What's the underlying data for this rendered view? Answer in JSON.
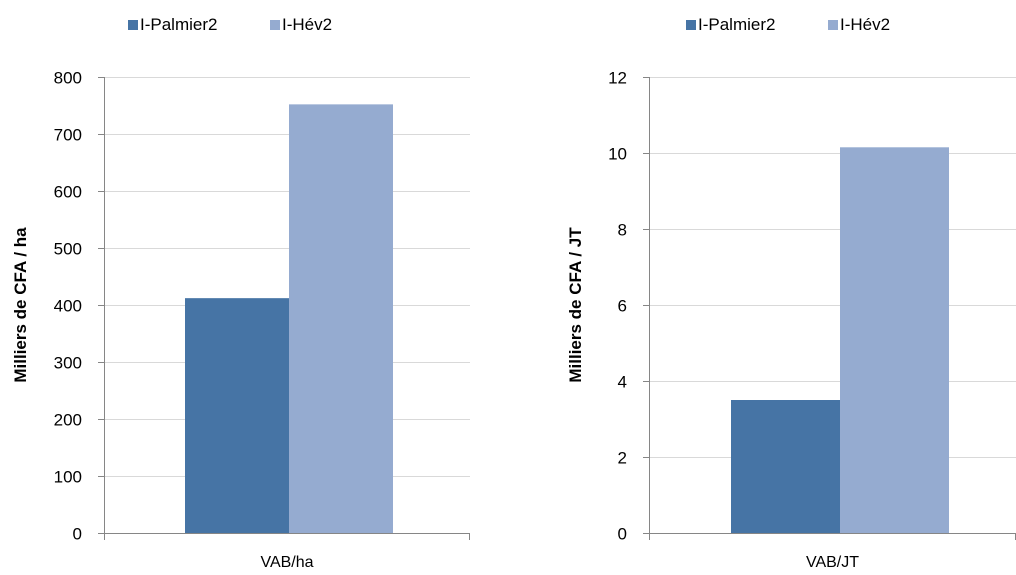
{
  "chart_data": [
    {
      "type": "bar",
      "categories": [
        "VAB/ha"
      ],
      "series": [
        {
          "name": "I-Palmier2",
          "values": [
            412
          ]
        },
        {
          "name": "I-Hév2",
          "values": [
            752
          ]
        }
      ],
      "title": "",
      "xlabel": "",
      "ylabel": "Milliers de CFA / ha",
      "ylim": [
        0,
        800
      ],
      "yticks": [
        0,
        100,
        200,
        300,
        400,
        500,
        600,
        700,
        800
      ],
      "grid": true,
      "legend": "top",
      "colors": [
        "#4674a5",
        "#95abd0"
      ]
    },
    {
      "type": "bar",
      "categories": [
        "VAB/JT"
      ],
      "series": [
        {
          "name": "I-Palmier2",
          "values": [
            3.5
          ]
        },
        {
          "name": "I-Hév2",
          "values": [
            10.15
          ]
        }
      ],
      "title": "",
      "xlabel": "",
      "ylabel": "Milliers de CFA / JT",
      "ylim": [
        0,
        12
      ],
      "yticks": [
        0,
        2,
        4,
        6,
        8,
        10,
        12
      ],
      "grid": true,
      "legend": "top",
      "colors": [
        "#4674a5",
        "#95abd0"
      ]
    }
  ]
}
